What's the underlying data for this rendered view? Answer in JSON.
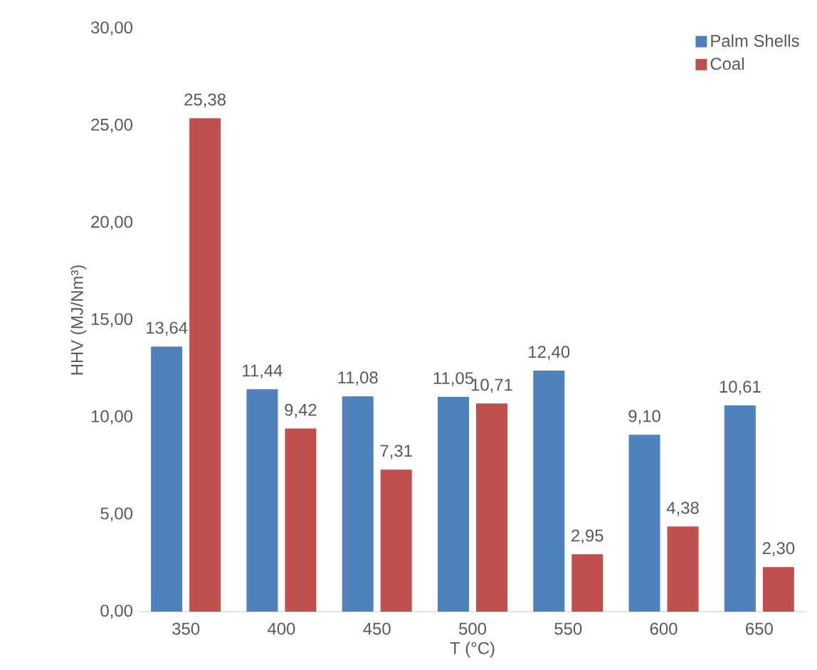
{
  "chart_data": {
    "type": "bar",
    "xlabel": "T (°C)",
    "ylabel": "HHV (MJ/Nm³)",
    "categories": [
      "350",
      "400",
      "450",
      "500",
      "550",
      "600",
      "650"
    ],
    "series": [
      {
        "name": "Palm Shells",
        "color": "#4f81bd",
        "values": [
          13.64,
          11.44,
          11.08,
          11.05,
          12.4,
          9.1,
          10.61
        ],
        "value_labels": [
          "13,64",
          "11,44",
          "11,08",
          "11,05",
          "12,40",
          "9,10",
          "10,61"
        ]
      },
      {
        "name": "Coal",
        "color": "#c0504d",
        "values": [
          25.38,
          9.42,
          7.31,
          10.71,
          2.95,
          4.38,
          2.3
        ],
        "value_labels": [
          "25,38",
          "9,42",
          "7,31",
          "10,71",
          "2,95",
          "4,38",
          "2,30"
        ]
      }
    ],
    "ylim": [
      0,
      30
    ],
    "yticks": [
      {
        "value": 0,
        "label": "0,00"
      },
      {
        "value": 5,
        "label": "5,00"
      },
      {
        "value": 10,
        "label": "10,00"
      },
      {
        "value": 15,
        "label": "15,00"
      },
      {
        "value": 20,
        "label": "20,00"
      },
      {
        "value": 25,
        "label": "25,00"
      },
      {
        "value": 30,
        "label": "30,00"
      }
    ],
    "grid": false,
    "legend": "top right"
  }
}
